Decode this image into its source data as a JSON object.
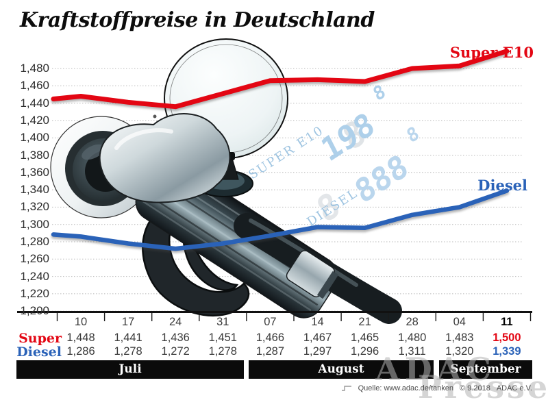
{
  "title": "Kraftstoffpreise in Deutschland",
  "colors": {
    "super": "#e30613",
    "diesel": "#2a62b8",
    "digits": "#a6cbe8",
    "band_bg": "#0b0b0b"
  },
  "legend": {
    "super": "Super E10",
    "diesel": "Diesel"
  },
  "chart_data": {
    "type": "line",
    "x_dates": [
      "10",
      "17",
      "24",
      "31",
      "07",
      "14",
      "21",
      "28",
      "04",
      "11"
    ],
    "months": [
      {
        "label": "Juli",
        "span": 4
      },
      {
        "label": "August",
        "span": 4
      },
      {
        "label": "September",
        "span": 2
      }
    ],
    "y_ticks": [
      "1,480",
      "1,460",
      "1,440",
      "1,420",
      "1,400",
      "1,380",
      "1,360",
      "1,340",
      "1,320",
      "1,300",
      "1,280",
      "1,260",
      "1,240",
      "1,220",
      "1,200"
    ],
    "ylim": [
      1.2,
      1.48
    ],
    "grid": true,
    "legend_position": "inline-right",
    "series": [
      {
        "name": "Super E10",
        "color": "#e30613",
        "values": [
          1.448,
          1.441,
          1.436,
          1.451,
          1.466,
          1.467,
          1.465,
          1.48,
          1.483,
          1.5
        ]
      },
      {
        "name": "Diesel",
        "color": "#2a62b8",
        "values": [
          1.286,
          1.278,
          1.272,
          1.278,
          1.287,
          1.297,
          1.296,
          1.311,
          1.32,
          1.339
        ]
      }
    ]
  },
  "table": {
    "row_labels": {
      "super": "Super",
      "diesel": "Diesel"
    },
    "dates": [
      "10",
      "17",
      "24",
      "31",
      "07",
      "14",
      "21",
      "28",
      "04",
      "11"
    ],
    "super": [
      "1,448",
      "1,441",
      "1,436",
      "1,451",
      "1,466",
      "1,467",
      "1,465",
      "1,480",
      "1,483",
      "1,500"
    ],
    "diesel": [
      "1,286",
      "1,278",
      "1,272",
      "1,278",
      "1,287",
      "1,297",
      "1,296",
      "1,311",
      "1,320",
      "1,339"
    ]
  },
  "decorations": {
    "display_label_super": "SUPER E10",
    "display_digits_super": "198",
    "display_digits_super_small": "8",
    "display_label_diesel": "DIESEL",
    "display_digits_diesel": "888",
    "display_digits_diesel_small": "8",
    "display_ghost": "8",
    "watermark_line1": "ADAC",
    "watermark_line2": "Presse"
  },
  "source": {
    "text": "Quelle: www.adac.de/tanken",
    "copyright": "© 9.2018",
    "org": "ADAC e.V."
  }
}
